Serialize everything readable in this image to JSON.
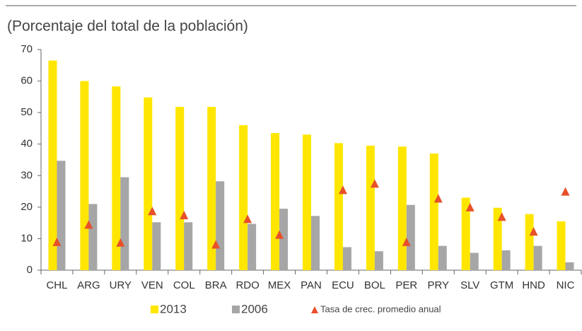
{
  "chart_data": {
    "type": "bar",
    "subtitle": "(Porcentaje del total de la población)",
    "categories": [
      "CHL",
      "ARG",
      "URY",
      "VEN",
      "COL",
      "BRA",
      "RDO",
      "MEX",
      "PAN",
      "ECU",
      "BOL",
      "PER",
      "PRY",
      "SLV",
      "GTM",
      "HND",
      "NIC"
    ],
    "series": [
      {
        "name": "2013",
        "color": "#ffe600",
        "values": [
          66.5,
          60,
          58.3,
          54.8,
          51.8,
          51.8,
          46,
          43.5,
          43,
          40.3,
          39.5,
          39.2,
          37,
          23,
          19.8,
          17.8,
          15.5
        ]
      },
      {
        "name": "2006",
        "color": "#a6a6a6",
        "values": [
          34.7,
          21,
          29.5,
          15.2,
          15.2,
          28.2,
          14.7,
          19.5,
          17.2,
          7.3,
          6,
          20.7,
          7.7,
          5.5,
          6.3,
          7.7,
          2.5
        ]
      },
      {
        "name": "Tasa de crec. promedio anual",
        "type": "scatter",
        "marker": "triangle",
        "color": "#e8502a",
        "values": [
          9,
          14.5,
          8.8,
          18.8,
          17.5,
          8.2,
          16.3,
          11.3,
          null,
          25.5,
          27.5,
          9,
          22.8,
          20,
          17,
          12.3,
          25
        ]
      }
    ],
    "ylim": [
      0,
      70
    ],
    "yticks": [
      0,
      10,
      20,
      30,
      40,
      50,
      60,
      70
    ]
  }
}
